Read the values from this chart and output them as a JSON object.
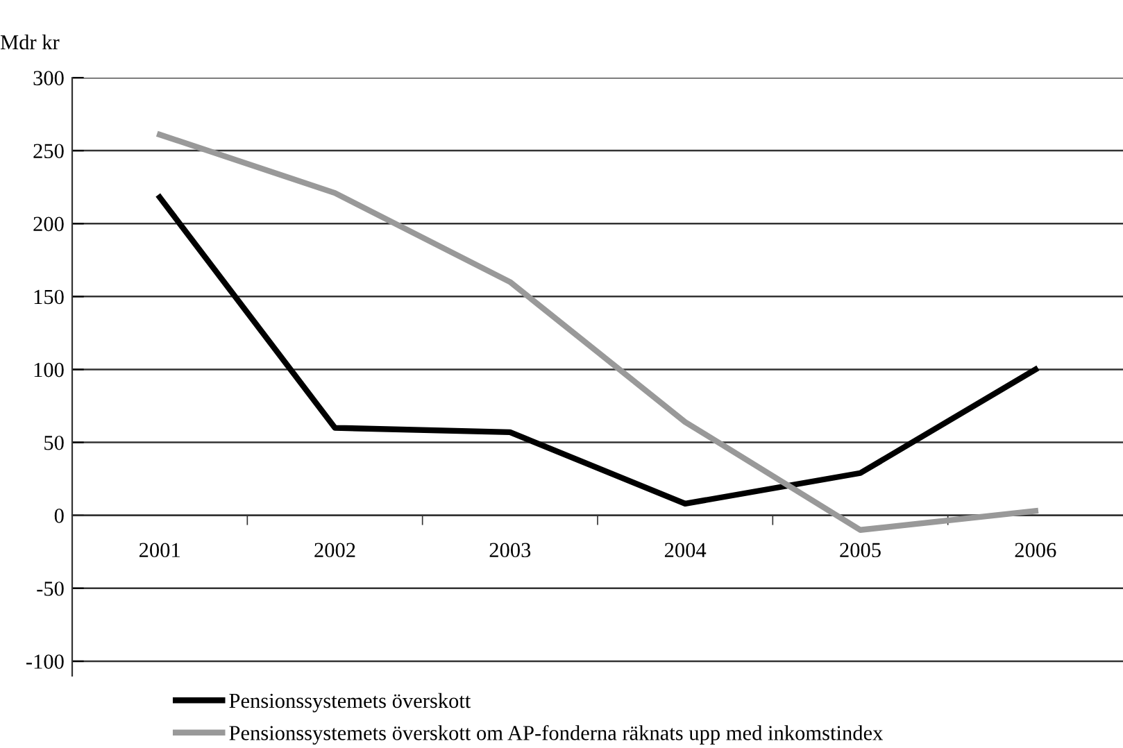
{
  "chart_data": {
    "type": "line",
    "ylabel": "Mdr kr",
    "categories": [
      "2001",
      "2002",
      "2003",
      "2004",
      "2005",
      "2006"
    ],
    "series": [
      {
        "name": "Pensionssystemets överskott",
        "color": "#000000",
        "values": [
          218,
          60,
          57,
          8,
          29,
          100
        ]
      },
      {
        "name": "Pensionssystemets överskott om AP-fonderna räknats upp med inkomstindex",
        "color": "#999999",
        "values": [
          261,
          221,
          160,
          64,
          -10,
          3
        ]
      }
    ],
    "ylim": [
      -110,
      300
    ],
    "yticks": [
      -100,
      -50,
      0,
      50,
      100,
      150,
      200,
      250,
      300
    ],
    "grid": "y",
    "legend": "bottom",
    "marker": "none",
    "line_style": "solid"
  }
}
